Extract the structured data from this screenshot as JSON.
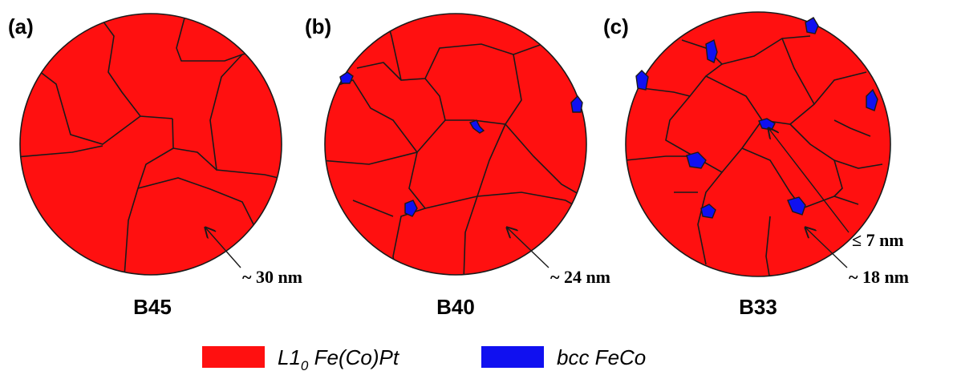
{
  "panels": [
    {
      "label": "(a)",
      "name": "B45",
      "annotations": [
        "~ 30 nm"
      ]
    },
    {
      "label": "(b)",
      "name": "B40",
      "annotations": [
        "~ 24 nm"
      ]
    },
    {
      "label": "(c)",
      "name": "B33",
      "annotations": [
        "≤ 7 nm",
        "~ 18 nm"
      ]
    }
  ],
  "legend": {
    "items": [
      {
        "main": "L1",
        "sub": "0",
        "rest": " Fe(Co)Pt"
      },
      {
        "main": "bcc FeCo"
      }
    ]
  }
}
